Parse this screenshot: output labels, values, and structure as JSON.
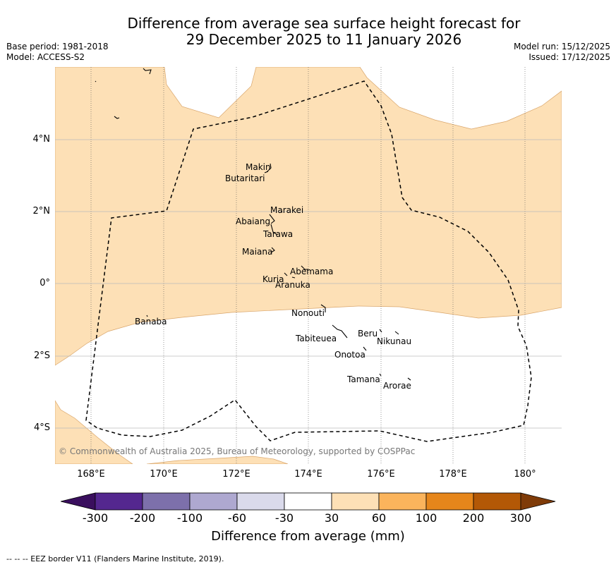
{
  "title_line1": "Difference from average sea surface height forecast for",
  "title_line2": "29 December 2025 to 11 January 2026",
  "meta_left": [
    "Base period: 1981-2018",
    "Model: ACCESS-S2"
  ],
  "meta_right": [
    "Model run: 15/12/2025",
    "Issued: 17/12/2025"
  ],
  "map": {
    "lat_labels": [
      "4°N",
      "2°N",
      "0°",
      "2°S",
      "4°S"
    ],
    "lon_labels": [
      "168°E",
      "170°E",
      "172°E",
      "174°E",
      "176°E",
      "178°E",
      "180°"
    ],
    "copyright": "© Commonwealth of Australia 2025, Bureau of Meteorology, supported by COSPPac",
    "places": [
      "Makin",
      "Butaritari",
      "Marakei",
      "Abaiang",
      "Tarawa",
      "Maiana",
      "Abemama",
      "Kuria",
      "Aranuka",
      "Nonouti",
      "Banaba",
      "Tabiteuea",
      "Beru",
      "Nikunau",
      "Onotoa",
      "Tamana",
      "Arorae"
    ]
  },
  "colorbar": {
    "title": "Difference from average (mm)",
    "ticks": [
      "-300",
      "-200",
      "-100",
      "-60",
      "-30",
      "30",
      "60",
      "100",
      "200",
      "300"
    ],
    "colors": [
      "#3a0f5e",
      "#54278f",
      "#7d70ab",
      "#aea8d0",
      "#dadaeb",
      "#ffffff",
      "#fde0b6",
      "#fbb45c",
      "#e6861b",
      "#b35806",
      "#7f3b08"
    ]
  },
  "footnote": "--  --  -- EEZ border V11 (Flanders Marine Institute, 2019)."
}
